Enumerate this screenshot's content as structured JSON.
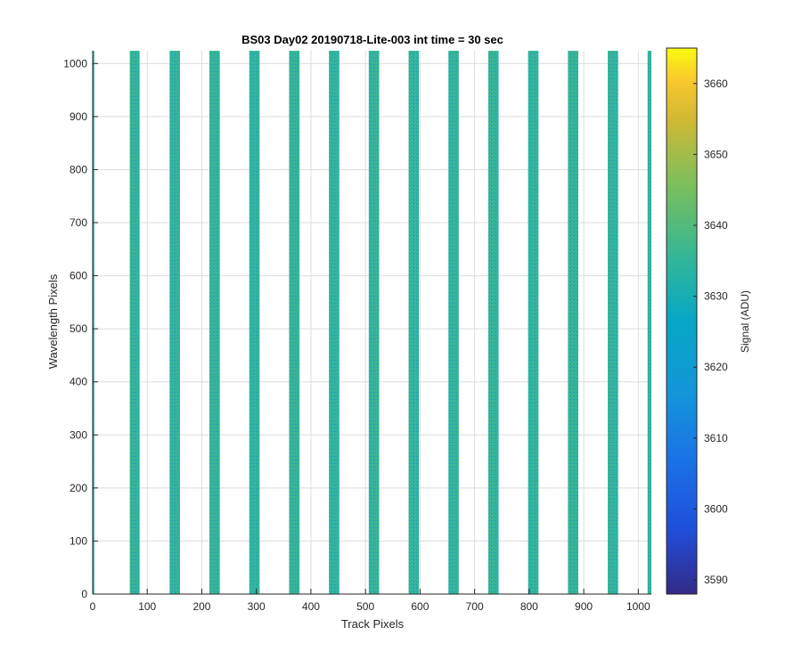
{
  "chart_data": {
    "type": "heatmap",
    "title": "BS03 Day02 20190718-Lite-003 int time = 30 sec",
    "xlabel": "Track Pixels",
    "ylabel": "Wavelength Pixels",
    "xlim": [
      0,
      1024
    ],
    "ylim": [
      0,
      1024
    ],
    "x_ticks": [
      0,
      100,
      200,
      300,
      400,
      500,
      600,
      700,
      800,
      900,
      1000
    ],
    "y_ticks": [
      0,
      100,
      200,
      300,
      400,
      500,
      600,
      700,
      800,
      900,
      1000
    ],
    "grid": true,
    "stripes": [
      {
        "x_start": 0,
        "x_end": 3
      },
      {
        "x_start": 68,
        "x_end": 86
      },
      {
        "x_start": 141,
        "x_end": 160
      },
      {
        "x_start": 214,
        "x_end": 233
      },
      {
        "x_start": 287,
        "x_end": 306
      },
      {
        "x_start": 360,
        "x_end": 379
      },
      {
        "x_start": 433,
        "x_end": 452
      },
      {
        "x_start": 506,
        "x_end": 525
      },
      {
        "x_start": 579,
        "x_end": 598
      },
      {
        "x_start": 652,
        "x_end": 671
      },
      {
        "x_start": 725,
        "x_end": 744
      },
      {
        "x_start": 798,
        "x_end": 817
      },
      {
        "x_start": 871,
        "x_end": 890
      },
      {
        "x_start": 944,
        "x_end": 963
      },
      {
        "x_start": 1017,
        "x_end": 1024
      }
    ],
    "colorbar": {
      "label": "Signal (ADU)",
      "range": [
        3588,
        3665
      ],
      "ticks": [
        3590,
        3600,
        3610,
        3620,
        3630,
        3640,
        3650,
        3660
      ]
    }
  }
}
